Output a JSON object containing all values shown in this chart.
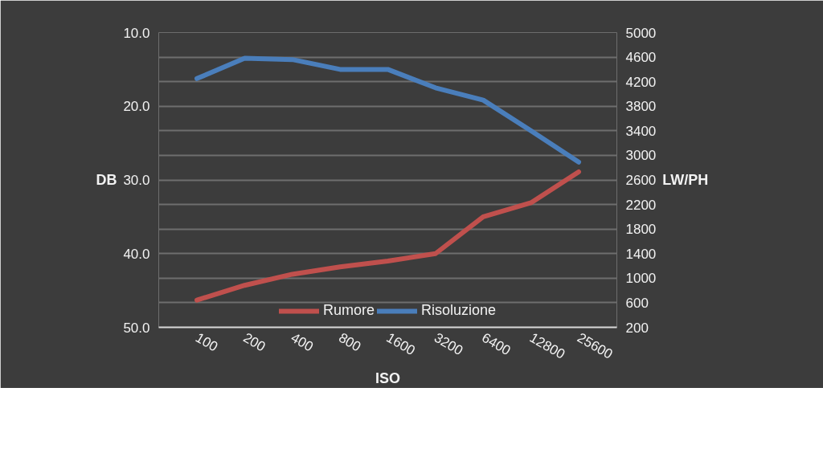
{
  "chart_data": {
    "type": "line",
    "xlabel": "ISO",
    "ylabel": "DB",
    "y2label": "LW/PH",
    "categories": [
      "100",
      "200",
      "400",
      "800",
      "1600",
      "3200",
      "6400",
      "12800",
      "25600"
    ],
    "series": [
      {
        "name": "Rumore",
        "color": "#c0504d",
        "values": [
          46.3,
          44.3,
          42.8,
          41.8,
          41.0,
          40.0,
          35.0,
          33.1,
          28.9
        ]
      },
      {
        "name": "Risoluzione",
        "color": "#4a7ebb",
        "axis": "y2",
        "values": [
          4250,
          4580,
          4560,
          4400,
          4400,
          4100,
          3900,
          3400,
          2890
        ]
      }
    ],
    "ylim": [
      50,
      10
    ],
    "yticks": [
      {
        "value": 10,
        "label": "10.0"
      },
      {
        "value": 20,
        "label": "20.0"
      },
      {
        "value": 30,
        "label": "30.0"
      },
      {
        "value": 40,
        "label": "40.0"
      },
      {
        "value": 50,
        "label": "50.0"
      }
    ],
    "y2lim": [
      200,
      5000
    ],
    "y2ticks": [
      200,
      600,
      1000,
      1400,
      1800,
      2200,
      2600,
      3000,
      3400,
      3800,
      4200,
      4600,
      5000
    ],
    "grid": "y2",
    "legend": "bottom",
    "marker": "none",
    "line_style": "solid"
  }
}
